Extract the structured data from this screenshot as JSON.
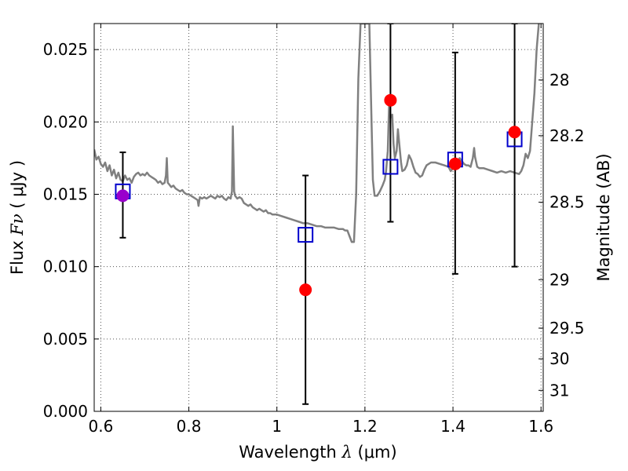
{
  "chart_data": {
    "type": "scatter",
    "xlabel": {
      "text": "Wavelength ",
      "symbol": "λ",
      "unit": " (μm)"
    },
    "ylabel": {
      "text": "Flux ",
      "symbol": "Fν",
      "unit": "  ( μJy )"
    },
    "y2label": "Magnitude (AB)",
    "xlim": [
      0.585,
      1.605
    ],
    "ylim": [
      0.0,
      0.0268
    ],
    "grid": true,
    "x_ticks": [
      {
        "value": 0.6,
        "label": "0.6"
      },
      {
        "value": 0.8,
        "label": "0.8"
      },
      {
        "value": 1.0,
        "label": "1"
      },
      {
        "value": 1.2,
        "label": "1.2"
      },
      {
        "value": 1.4,
        "label": "1.4"
      },
      {
        "value": 1.6,
        "label": "1.6"
      }
    ],
    "y_ticks": [
      {
        "value": 0.0,
        "label": "0.000"
      },
      {
        "value": 0.005,
        "label": "0.005"
      },
      {
        "value": 0.01,
        "label": "0.010"
      },
      {
        "value": 0.015,
        "label": "0.015"
      },
      {
        "value": 0.02,
        "label": "0.020"
      },
      {
        "value": 0.025,
        "label": "0.025"
      }
    ],
    "y2_ticks": [
      {
        "label": "28",
        "flux": 0.0229
      },
      {
        "label": "28.2",
        "flux": 0.01905
      },
      {
        "label": "28.5",
        "flux": 0.01445
      },
      {
        "label": "29",
        "flux": 0.0091
      },
      {
        "label": "29.5",
        "flux": 0.00575
      },
      {
        "label": "30",
        "flux": 0.00363
      },
      {
        "label": "31",
        "flux": 0.00145
      }
    ],
    "series": [
      {
        "kind": "spectrum",
        "color": "#808080",
        "points": [
          [
            0.585,
            0.0181
          ],
          [
            0.59,
            0.0174
          ],
          [
            0.595,
            0.0176
          ],
          [
            0.6,
            0.0171
          ],
          [
            0.605,
            0.0169
          ],
          [
            0.61,
            0.0172
          ],
          [
            0.615,
            0.0166
          ],
          [
            0.62,
            0.017
          ],
          [
            0.625,
            0.0163
          ],
          [
            0.63,
            0.0167
          ],
          [
            0.635,
            0.0161
          ],
          [
            0.64,
            0.0165
          ],
          [
            0.645,
            0.016
          ],
          [
            0.65,
            0.0159
          ],
          [
            0.655,
            0.0163
          ],
          [
            0.66,
            0.016
          ],
          [
            0.665,
            0.0161
          ],
          [
            0.67,
            0.0158
          ],
          [
            0.675,
            0.0162
          ],
          [
            0.68,
            0.0164
          ],
          [
            0.685,
            0.0165
          ],
          [
            0.69,
            0.0163
          ],
          [
            0.695,
            0.0164
          ],
          [
            0.7,
            0.0163
          ],
          [
            0.705,
            0.0165
          ],
          [
            0.71,
            0.0163
          ],
          [
            0.715,
            0.0162
          ],
          [
            0.72,
            0.0161
          ],
          [
            0.725,
            0.016
          ],
          [
            0.73,
            0.0158
          ],
          [
            0.735,
            0.0159
          ],
          [
            0.74,
            0.0157
          ],
          [
            0.745,
            0.0158
          ],
          [
            0.748,
            0.0163
          ],
          [
            0.75,
            0.0175
          ],
          [
            0.752,
            0.0158
          ],
          [
            0.755,
            0.0157
          ],
          [
            0.76,
            0.0155
          ],
          [
            0.765,
            0.0156
          ],
          [
            0.77,
            0.0154
          ],
          [
            0.775,
            0.0153
          ],
          [
            0.78,
            0.0152
          ],
          [
            0.785,
            0.0153
          ],
          [
            0.79,
            0.0151
          ],
          [
            0.795,
            0.015
          ],
          [
            0.8,
            0.015
          ],
          [
            0.805,
            0.0149
          ],
          [
            0.81,
            0.0148
          ],
          [
            0.815,
            0.0147
          ],
          [
            0.82,
            0.0146
          ],
          [
            0.822,
            0.0142
          ],
          [
            0.825,
            0.0148
          ],
          [
            0.83,
            0.0147
          ],
          [
            0.835,
            0.0148
          ],
          [
            0.84,
            0.0147
          ],
          [
            0.845,
            0.0148
          ],
          [
            0.85,
            0.0149
          ],
          [
            0.855,
            0.0148
          ],
          [
            0.86,
            0.0147
          ],
          [
            0.865,
            0.0149
          ],
          [
            0.87,
            0.0148
          ],
          [
            0.875,
            0.0149
          ],
          [
            0.88,
            0.0147
          ],
          [
            0.885,
            0.0146
          ],
          [
            0.89,
            0.0148
          ],
          [
            0.895,
            0.0147
          ],
          [
            0.898,
            0.0152
          ],
          [
            0.9,
            0.0197
          ],
          [
            0.903,
            0.0152
          ],
          [
            0.905,
            0.0149
          ],
          [
            0.91,
            0.0147
          ],
          [
            0.915,
            0.0148
          ],
          [
            0.92,
            0.0147
          ],
          [
            0.925,
            0.0144
          ],
          [
            0.93,
            0.0143
          ],
          [
            0.935,
            0.0142
          ],
          [
            0.94,
            0.0143
          ],
          [
            0.945,
            0.0141
          ],
          [
            0.95,
            0.014
          ],
          [
            0.955,
            0.0139
          ],
          [
            0.96,
            0.014
          ],
          [
            0.965,
            0.0139
          ],
          [
            0.97,
            0.0138
          ],
          [
            0.975,
            0.0139
          ],
          [
            0.98,
            0.0137
          ],
          [
            0.985,
            0.0137
          ],
          [
            0.99,
            0.0136
          ],
          [
            1.0,
            0.0136
          ],
          [
            1.01,
            0.0135
          ],
          [
            1.02,
            0.0134
          ],
          [
            1.03,
            0.0133
          ],
          [
            1.04,
            0.0132
          ],
          [
            1.05,
            0.0131
          ],
          [
            1.06,
            0.013
          ],
          [
            1.07,
            0.013
          ],
          [
            1.08,
            0.0129
          ],
          [
            1.09,
            0.0128
          ],
          [
            1.1,
            0.0128
          ],
          [
            1.11,
            0.0127
          ],
          [
            1.12,
            0.0127
          ],
          [
            1.13,
            0.0127
          ],
          [
            1.14,
            0.0126
          ],
          [
            1.15,
            0.0126
          ],
          [
            1.155,
            0.0125
          ],
          [
            1.16,
            0.0125
          ],
          [
            1.165,
            0.0121
          ],
          [
            1.17,
            0.0117
          ],
          [
            1.175,
            0.0117
          ],
          [
            1.18,
            0.015
          ],
          [
            1.185,
            0.023
          ],
          [
            1.19,
            0.0268
          ],
          [
            1.195,
            0.0268
          ],
          [
            1.2,
            0.0268
          ],
          [
            1.205,
            0.0268
          ],
          [
            1.21,
            0.0268
          ],
          [
            1.215,
            0.02
          ],
          [
            1.218,
            0.016
          ],
          [
            1.222,
            0.0149
          ],
          [
            1.228,
            0.0149
          ],
          [
            1.234,
            0.0152
          ],
          [
            1.24,
            0.0156
          ],
          [
            1.245,
            0.016
          ],
          [
            1.248,
            0.0166
          ],
          [
            1.252,
            0.018
          ],
          [
            1.255,
            0.0213
          ],
          [
            1.258,
            0.0203
          ],
          [
            1.262,
            0.0205
          ],
          [
            1.265,
            0.0185
          ],
          [
            1.268,
            0.0175
          ],
          [
            1.272,
            0.018
          ],
          [
            1.275,
            0.0195
          ],
          [
            1.278,
            0.0185
          ],
          [
            1.282,
            0.0172
          ],
          [
            1.285,
            0.0166
          ],
          [
            1.29,
            0.0167
          ],
          [
            1.295,
            0.017
          ],
          [
            1.3,
            0.0177
          ],
          [
            1.305,
            0.0174
          ],
          [
            1.31,
            0.0169
          ],
          [
            1.315,
            0.0165
          ],
          [
            1.32,
            0.0164
          ],
          [
            1.325,
            0.0162
          ],
          [
            1.33,
            0.0163
          ],
          [
            1.335,
            0.0167
          ],
          [
            1.34,
            0.017
          ],
          [
            1.35,
            0.0172
          ],
          [
            1.36,
            0.0172
          ],
          [
            1.37,
            0.0171
          ],
          [
            1.38,
            0.017
          ],
          [
            1.39,
            0.0169
          ],
          [
            1.395,
            0.0166
          ],
          [
            1.4,
            0.0168
          ],
          [
            1.405,
            0.0171
          ],
          [
            1.41,
            0.0172
          ],
          [
            1.415,
            0.0175
          ],
          [
            1.42,
            0.0173
          ],
          [
            1.425,
            0.0171
          ],
          [
            1.43,
            0.017
          ],
          [
            1.435,
            0.017
          ],
          [
            1.44,
            0.0169
          ],
          [
            1.445,
            0.0175
          ],
          [
            1.448,
            0.0182
          ],
          [
            1.45,
            0.0176
          ],
          [
            1.455,
            0.0169
          ],
          [
            1.46,
            0.0168
          ],
          [
            1.47,
            0.0168
          ],
          [
            1.48,
            0.0167
          ],
          [
            1.49,
            0.0166
          ],
          [
            1.5,
            0.0165
          ],
          [
            1.51,
            0.0166
          ],
          [
            1.52,
            0.0165
          ],
          [
            1.53,
            0.0166
          ],
          [
            1.54,
            0.0165
          ],
          [
            1.55,
            0.0164
          ],
          [
            1.555,
            0.0166
          ],
          [
            1.56,
            0.017
          ],
          [
            1.565,
            0.0178
          ],
          [
            1.57,
            0.0175
          ],
          [
            1.575,
            0.018
          ],
          [
            1.58,
            0.02
          ],
          [
            1.585,
            0.022
          ],
          [
            1.59,
            0.025
          ],
          [
            1.595,
            0.0268
          ]
        ]
      },
      {
        "kind": "model-photometry",
        "marker": "open-square",
        "color": "#0000cc",
        "points": [
          [
            0.65,
            0.0152
          ],
          [
            1.065,
            0.0122
          ],
          [
            1.258,
            0.0169
          ],
          [
            1.405,
            0.0174
          ],
          [
            1.54,
            0.0188
          ]
        ]
      },
      {
        "kind": "observed-photometry",
        "marker": "filled-circle",
        "points": [
          {
            "x": 0.65,
            "y": 0.0149,
            "yerr_low": 0.012,
            "yerr_high": 0.0179,
            "color": "#9900cc"
          },
          {
            "x": 1.065,
            "y": 0.0084,
            "yerr_low": 0.0005,
            "yerr_high": 0.0163,
            "color": "#ff0000"
          },
          {
            "x": 1.258,
            "y": 0.0215,
            "yerr_low": 0.0131,
            "yerr_high": 0.0268,
            "color": "#ff0000"
          },
          {
            "x": 1.405,
            "y": 0.0171,
            "yerr_low": 0.0095,
            "yerr_high": 0.0248,
            "color": "#ff0000"
          },
          {
            "x": 1.54,
            "y": 0.0193,
            "yerr_low": 0.01,
            "yerr_high": 0.0268,
            "color": "#ff0000"
          }
        ]
      }
    ]
  }
}
